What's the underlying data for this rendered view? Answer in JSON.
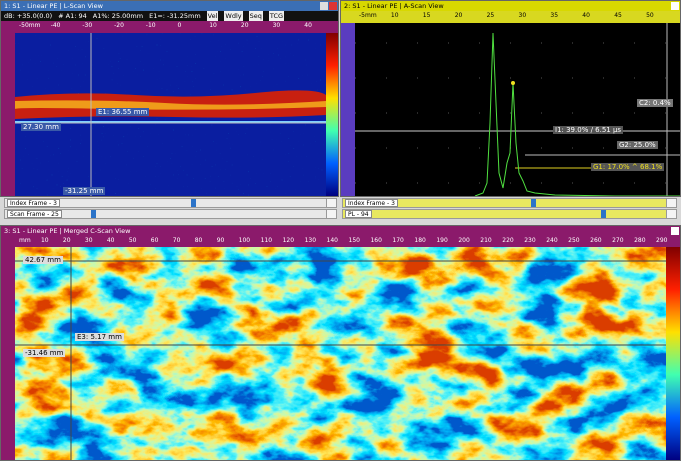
{
  "panels": [
    {
      "title": "1: S1 - Linear PE | L-Scan View",
      "toolbar": [
        "dB: +35.0(0.0)",
        "# A1: 94",
        "A1%: 25.00mm",
        "E1=: -31.25mm",
        "Vel",
        "Wdly",
        "Seq",
        "TCG"
      ],
      "ruler_labels": [
        "-50mm",
        "-40",
        "-30",
        "-20",
        "-10",
        "0",
        "10",
        "20",
        "30",
        "40"
      ],
      "labels": [
        "27.30 mm",
        "E1: 36.55 mm",
        "-31.25 mm"
      ]
    },
    {
      "title": "2: S1 - Linear PE | A-Scan View",
      "ruler_labels": [
        "-5mm",
        "10",
        "15",
        "20",
        "25",
        "30",
        "35",
        "40",
        "45",
        "50"
      ],
      "labels": [
        "C2: 0.4%",
        "I1: 39.0% / 6.51 µs",
        "G2: 25.0%",
        "G1: 17.0% ^ 68.1%"
      ]
    },
    {
      "title": "3: S1 - Linear PE | Merged C-Scan View",
      "ruler_labels": [
        "mm",
        "10",
        "20",
        "30",
        "40",
        "50",
        "60",
        "70",
        "80",
        "90",
        "100",
        "110",
        "120",
        "130",
        "140",
        "150",
        "160",
        "170",
        "180",
        "190",
        "200",
        "210",
        "220",
        "230",
        "240",
        "250",
        "260",
        "270",
        "280",
        "290"
      ],
      "labels": [
        "42.67 mm",
        "E3: 5.17 mm",
        "-31.46 mm"
      ]
    }
  ],
  "sliders": [
    "Index Frame - 3",
    "Scan Frame - 25",
    "Index Frame - 3",
    "PL - 94"
  ]
}
